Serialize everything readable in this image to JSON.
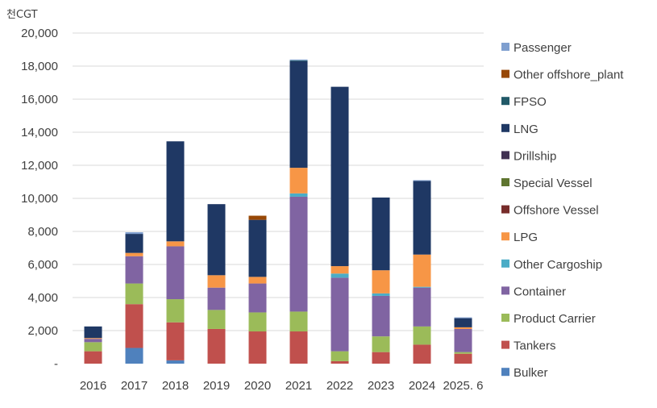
{
  "chart_data": {
    "type": "stacked-bar",
    "unit_label": "천CGT",
    "ylim": [
      0,
      20000
    ],
    "y_ticks": [
      "-",
      "2,000",
      "4,000",
      "6,000",
      "8,000",
      "10,000",
      "12,000",
      "14,000",
      "16,000",
      "18,000",
      "20,000"
    ],
    "categories": [
      "2016",
      "2017",
      "2018",
      "2019",
      "2020",
      "2021",
      "2022",
      "2023",
      "2024",
      "2025. 6"
    ],
    "series": [
      {
        "name": "Bulker",
        "color": "#4f81bd",
        "values": [
          0,
          950,
          200,
          0,
          0,
          0,
          0,
          0,
          0,
          0
        ]
      },
      {
        "name": "Tankers",
        "color": "#c0504d",
        "values": [
          750,
          2650,
          2300,
          2100,
          1950,
          1950,
          150,
          700,
          1150,
          600
        ]
      },
      {
        "name": "Product Carrier",
        "color": "#9bbb59",
        "values": [
          550,
          1250,
          1400,
          1150,
          1150,
          1200,
          600,
          950,
          1100,
          100
        ]
      },
      {
        "name": "Container",
        "color": "#8064a2",
        "values": [
          200,
          1650,
          3200,
          1350,
          1750,
          6950,
          4450,
          2450,
          2350,
          1400
        ]
      },
      {
        "name": "Other Cargoship",
        "color": "#4bacc6",
        "values": [
          0,
          0,
          0,
          0,
          0,
          200,
          250,
          150,
          50,
          0
        ]
      },
      {
        "name": "LPG",
        "color": "#f79646",
        "values": [
          50,
          200,
          300,
          750,
          400,
          1550,
          450,
          1400,
          1950,
          100
        ]
      },
      {
        "name": "Offshore Vessel",
        "color": "#772c2a",
        "values": [
          0,
          0,
          0,
          0,
          0,
          0,
          0,
          0,
          0,
          0
        ]
      },
      {
        "name": "Special Vessel",
        "color": "#5f7530",
        "values": [
          0,
          0,
          0,
          0,
          0,
          0,
          0,
          0,
          0,
          0
        ]
      },
      {
        "name": "Drillship",
        "color": "#403152",
        "values": [
          0,
          0,
          0,
          0,
          0,
          0,
          0,
          0,
          0,
          0
        ]
      },
      {
        "name": "LNG",
        "color": "#1f3864",
        "values": [
          700,
          1150,
          6050,
          4300,
          3450,
          6450,
          10850,
          4400,
          4450,
          550
        ]
      },
      {
        "name": "FPSO",
        "color": "#215968",
        "values": [
          0,
          0,
          0,
          0,
          0,
          50,
          0,
          0,
          0,
          0
        ]
      },
      {
        "name": "Other offshore_plant",
        "color": "#984807",
        "values": [
          0,
          0,
          0,
          0,
          250,
          0,
          0,
          0,
          0,
          0
        ]
      },
      {
        "name": "Passenger",
        "color": "#7f9fcf",
        "values": [
          0,
          100,
          0,
          0,
          0,
          50,
          0,
          0,
          50,
          50
        ]
      }
    ]
  }
}
